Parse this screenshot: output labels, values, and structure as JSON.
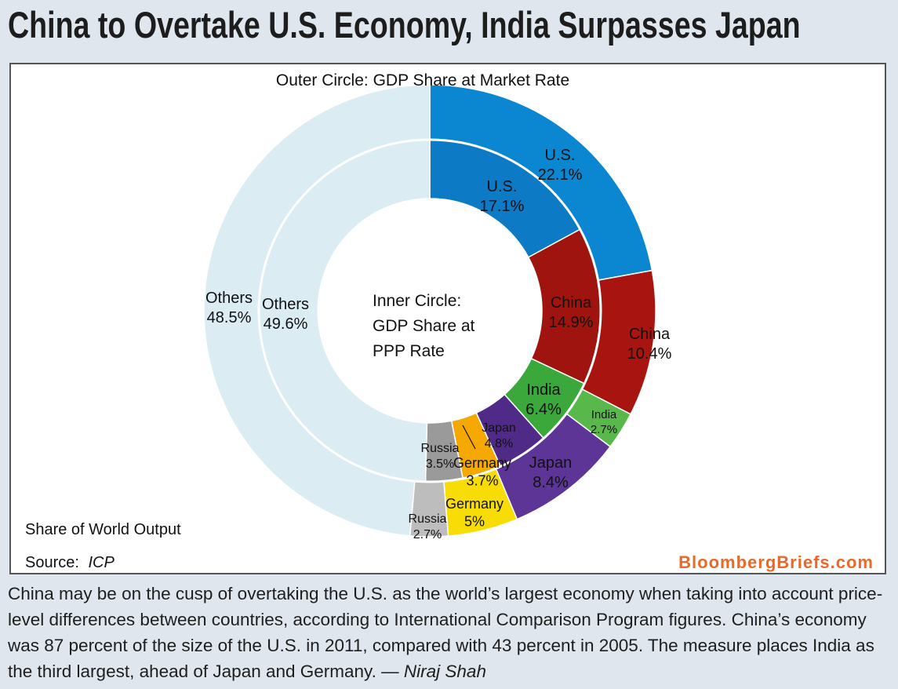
{
  "title": "China to Overtake U.S. Economy, India Surpasses Japan",
  "colors": {
    "background": "#dfe6ee",
    "panel": "#ffffff",
    "brand": "#e8692a"
  },
  "chart_data": {
    "type": "pie",
    "subtype": "nested-donut",
    "outer_label": "Outer Circle: GDP Share at Market Rate",
    "inner_label_lines": [
      "Inner Circle:",
      "GDP Share at",
      "PPP Rate"
    ],
    "footer_label": "Share of World Output",
    "source_prefix": "Source:",
    "source_name": "ICP",
    "brand": "BloombergBriefs.com",
    "outer": [
      {
        "name": "U.S.",
        "value": 22.1,
        "value_label": "22.1%",
        "color": "#0b86d0"
      },
      {
        "name": "China",
        "value": 10.4,
        "value_label": "10.4%",
        "color": "#a8140f"
      },
      {
        "name": "India",
        "value": 2.7,
        "value_label": "2.7%",
        "color": "#58b94a"
      },
      {
        "name": "Japan",
        "value": 8.4,
        "value_label": "8.4%",
        "color": "#5c3596"
      },
      {
        "name": "Germany",
        "value": 5,
        "value_label": "5%",
        "color": "#f7dc05"
      },
      {
        "name": "Russia",
        "value": 2.7,
        "value_label": "2.7%",
        "color": "#bdbdbd"
      },
      {
        "name": "Others",
        "value": 48.5,
        "value_label": "48.5%",
        "color": "#dbecf3"
      }
    ],
    "inner": [
      {
        "name": "U.S.",
        "value": 17.1,
        "value_label": "17.1%",
        "color": "#0d7ac5"
      },
      {
        "name": "China",
        "value": 14.9,
        "value_label": "14.9%",
        "color": "#a0140f"
      },
      {
        "name": "India",
        "value": 6.4,
        "value_label": "6.4%",
        "color": "#3aa83a"
      },
      {
        "name": "Japan",
        "value": 4.8,
        "value_label": "4.8%",
        "color": "#4f2a86"
      },
      {
        "name": "Germany",
        "value": 3.7,
        "value_label": "3.7%",
        "color": "#f5a800"
      },
      {
        "name": "Russia",
        "value": 3.5,
        "value_label": "3.5%",
        "color": "#9a9a9a"
      },
      {
        "name": "Others",
        "value": 49.6,
        "value_label": "49.6%",
        "color": "#dbecf3"
      }
    ]
  },
  "caption": {
    "text": "China may be on the cusp of overtaking the U.S. as the world’s largest economy when taking into account price-level differences between countries, according to International Comparison Program figures. China’s economy was 87 percent of the size of the U.S. in 2011, compared with 43 percent in 2005. The measure places India as the third largest, ahead of Japan and Germany. —",
    "author": "Niraj Shah"
  }
}
